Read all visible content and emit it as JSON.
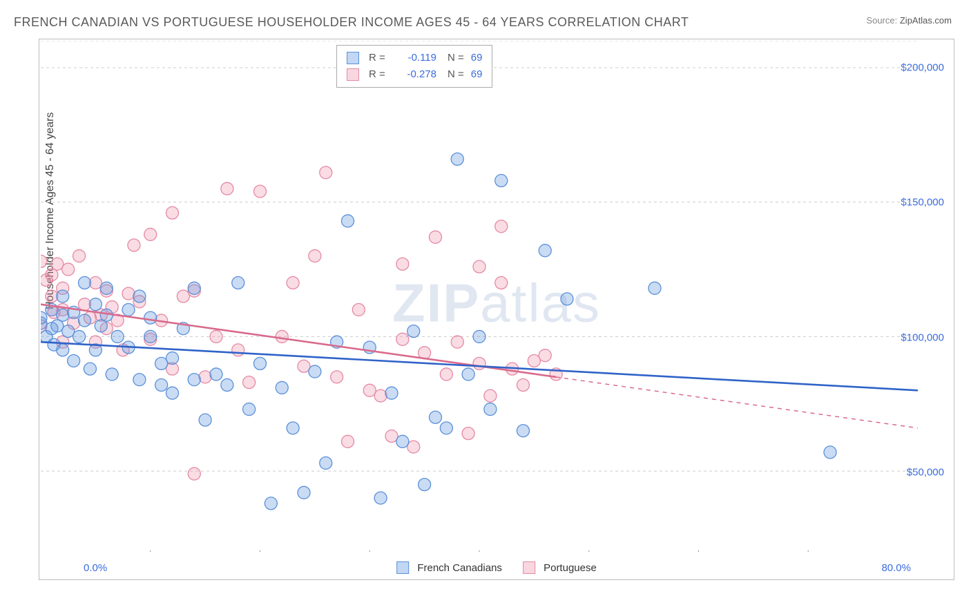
{
  "title": "FRENCH CANADIAN VS PORTUGUESE HOUSEHOLDER INCOME AGES 45 - 64 YEARS CORRELATION CHART",
  "source_label": "Source:",
  "source_value": "ZipAtlas.com",
  "ylabel": "Householder Income Ages 45 - 64 years",
  "watermark": {
    "bold": "ZIP",
    "light": "atlas"
  },
  "xaxis": {
    "min_label": "0.0%",
    "max_label": "80.0%",
    "min": 0,
    "max": 80,
    "ticks": [
      10,
      20,
      30,
      40,
      50,
      60,
      70
    ]
  },
  "yaxis": {
    "min": 20000,
    "max": 210000,
    "ticks": [
      {
        "v": 50000,
        "label": "$50,000"
      },
      {
        "v": 100000,
        "label": "$100,000"
      },
      {
        "v": 150000,
        "label": "$150,000"
      },
      {
        "v": 200000,
        "label": "$200,000"
      }
    ]
  },
  "legend_bottom": {
    "a": "French Canadians",
    "b": "Portuguese"
  },
  "legend_box": {
    "rows": [
      {
        "color": "blue",
        "r": "-0.119",
        "n": "69"
      },
      {
        "color": "pink",
        "r": "-0.278",
        "n": "69"
      }
    ],
    "r_label": "R =",
    "n_label": "N ="
  },
  "series": {
    "blue": {
      "marker_fill": "rgba(99,155,224,0.35)",
      "marker_stroke": "#5b8fd9",
      "line_color": "#2f63c8",
      "trend": {
        "y_at_xmin": 98000,
        "y_at_xmax": 80000,
        "solid_until_x": 80
      },
      "points": [
        [
          0,
          105000
        ],
        [
          0,
          107000
        ],
        [
          0.5,
          100000
        ],
        [
          1,
          103000
        ],
        [
          1,
          110000
        ],
        [
          1.2,
          97000
        ],
        [
          1.5,
          104000
        ],
        [
          2,
          108000
        ],
        [
          2,
          95000
        ],
        [
          2,
          115000
        ],
        [
          2.5,
          102000
        ],
        [
          3,
          109000
        ],
        [
          3,
          91000
        ],
        [
          3.5,
          100000
        ],
        [
          4,
          106000
        ],
        [
          4,
          120000
        ],
        [
          4.5,
          88000
        ],
        [
          5,
          112000
        ],
        [
          5,
          95000
        ],
        [
          5.5,
          104000
        ],
        [
          6,
          108000
        ],
        [
          6,
          118000
        ],
        [
          6.5,
          86000
        ],
        [
          7,
          100000
        ],
        [
          8,
          110000
        ],
        [
          8,
          96000
        ],
        [
          9,
          115000
        ],
        [
          9,
          84000
        ],
        [
          10,
          100000
        ],
        [
          10,
          107000
        ],
        [
          11,
          82000
        ],
        [
          11,
          90000
        ],
        [
          12,
          92000
        ],
        [
          12,
          79000
        ],
        [
          13,
          103000
        ],
        [
          14,
          84000
        ],
        [
          14,
          118000
        ],
        [
          15,
          69000
        ],
        [
          16,
          86000
        ],
        [
          17,
          82000
        ],
        [
          18,
          120000
        ],
        [
          19,
          73000
        ],
        [
          20,
          90000
        ],
        [
          21,
          38000
        ],
        [
          22,
          81000
        ],
        [
          23,
          66000
        ],
        [
          24,
          42000
        ],
        [
          25,
          87000
        ],
        [
          26,
          53000
        ],
        [
          27,
          98000
        ],
        [
          28,
          143000
        ],
        [
          30,
          96000
        ],
        [
          31,
          40000
        ],
        [
          32,
          79000
        ],
        [
          33,
          61000
        ],
        [
          34,
          102000
        ],
        [
          35,
          45000
        ],
        [
          36,
          70000
        ],
        [
          37,
          66000
        ],
        [
          38,
          166000
        ],
        [
          39,
          86000
        ],
        [
          40,
          100000
        ],
        [
          41,
          73000
        ],
        [
          42,
          158000
        ],
        [
          44,
          65000
        ],
        [
          46,
          132000
        ],
        [
          48,
          114000
        ],
        [
          56,
          118000
        ],
        [
          72,
          57000
        ]
      ]
    },
    "pink": {
      "marker_fill": "rgba(234,140,165,0.30)",
      "marker_stroke": "#e588a3",
      "line_color": "#d96a8c",
      "trend": {
        "y_at_xmin": 112000,
        "y_at_xmax": 66000,
        "solid_until_x": 47
      },
      "points": [
        [
          0,
          104000
        ],
        [
          0,
          128000
        ],
        [
          0.5,
          121000
        ],
        [
          1,
          115000
        ],
        [
          1,
          123000
        ],
        [
          1.2,
          109000
        ],
        [
          1.5,
          127000
        ],
        [
          2,
          118000
        ],
        [
          2,
          110000
        ],
        [
          2,
          98000
        ],
        [
          2.5,
          125000
        ],
        [
          3,
          105000
        ],
        [
          3.5,
          130000
        ],
        [
          4,
          112000
        ],
        [
          4.5,
          107000
        ],
        [
          5,
          120000
        ],
        [
          5,
          98000
        ],
        [
          5.5,
          108000
        ],
        [
          6,
          117000
        ],
        [
          6,
          103000
        ],
        [
          6.5,
          111000
        ],
        [
          7,
          106000
        ],
        [
          7.5,
          95000
        ],
        [
          8,
          116000
        ],
        [
          8.5,
          134000
        ],
        [
          9,
          113000
        ],
        [
          10,
          99000
        ],
        [
          10,
          138000
        ],
        [
          11,
          106000
        ],
        [
          12,
          146000
        ],
        [
          12,
          88000
        ],
        [
          13,
          115000
        ],
        [
          14,
          117000
        ],
        [
          14,
          49000
        ],
        [
          15,
          85000
        ],
        [
          16,
          100000
        ],
        [
          17,
          155000
        ],
        [
          18,
          95000
        ],
        [
          19,
          83000
        ],
        [
          20,
          154000
        ],
        [
          22,
          100000
        ],
        [
          23,
          120000
        ],
        [
          24,
          89000
        ],
        [
          25,
          130000
        ],
        [
          26,
          161000
        ],
        [
          27,
          85000
        ],
        [
          28,
          61000
        ],
        [
          29,
          110000
        ],
        [
          30,
          80000
        ],
        [
          31,
          78000
        ],
        [
          32,
          63000
        ],
        [
          33,
          99000
        ],
        [
          33,
          127000
        ],
        [
          34,
          59000
        ],
        [
          35,
          94000
        ],
        [
          36,
          137000
        ],
        [
          37,
          86000
        ],
        [
          38,
          98000
        ],
        [
          39,
          64000
        ],
        [
          40,
          90000
        ],
        [
          41,
          78000
        ],
        [
          42,
          120000
        ],
        [
          43,
          88000
        ],
        [
          44,
          82000
        ],
        [
          45,
          91000
        ],
        [
          46,
          93000
        ],
        [
          47,
          86000
        ],
        [
          40,
          126000
        ],
        [
          42,
          141000
        ]
      ]
    }
  },
  "chart_style": {
    "marker_radius": 9,
    "marker_stroke_width": 1.3,
    "line_width": 2.6,
    "grid_color": "#cccccc",
    "background": "#ffffff"
  }
}
